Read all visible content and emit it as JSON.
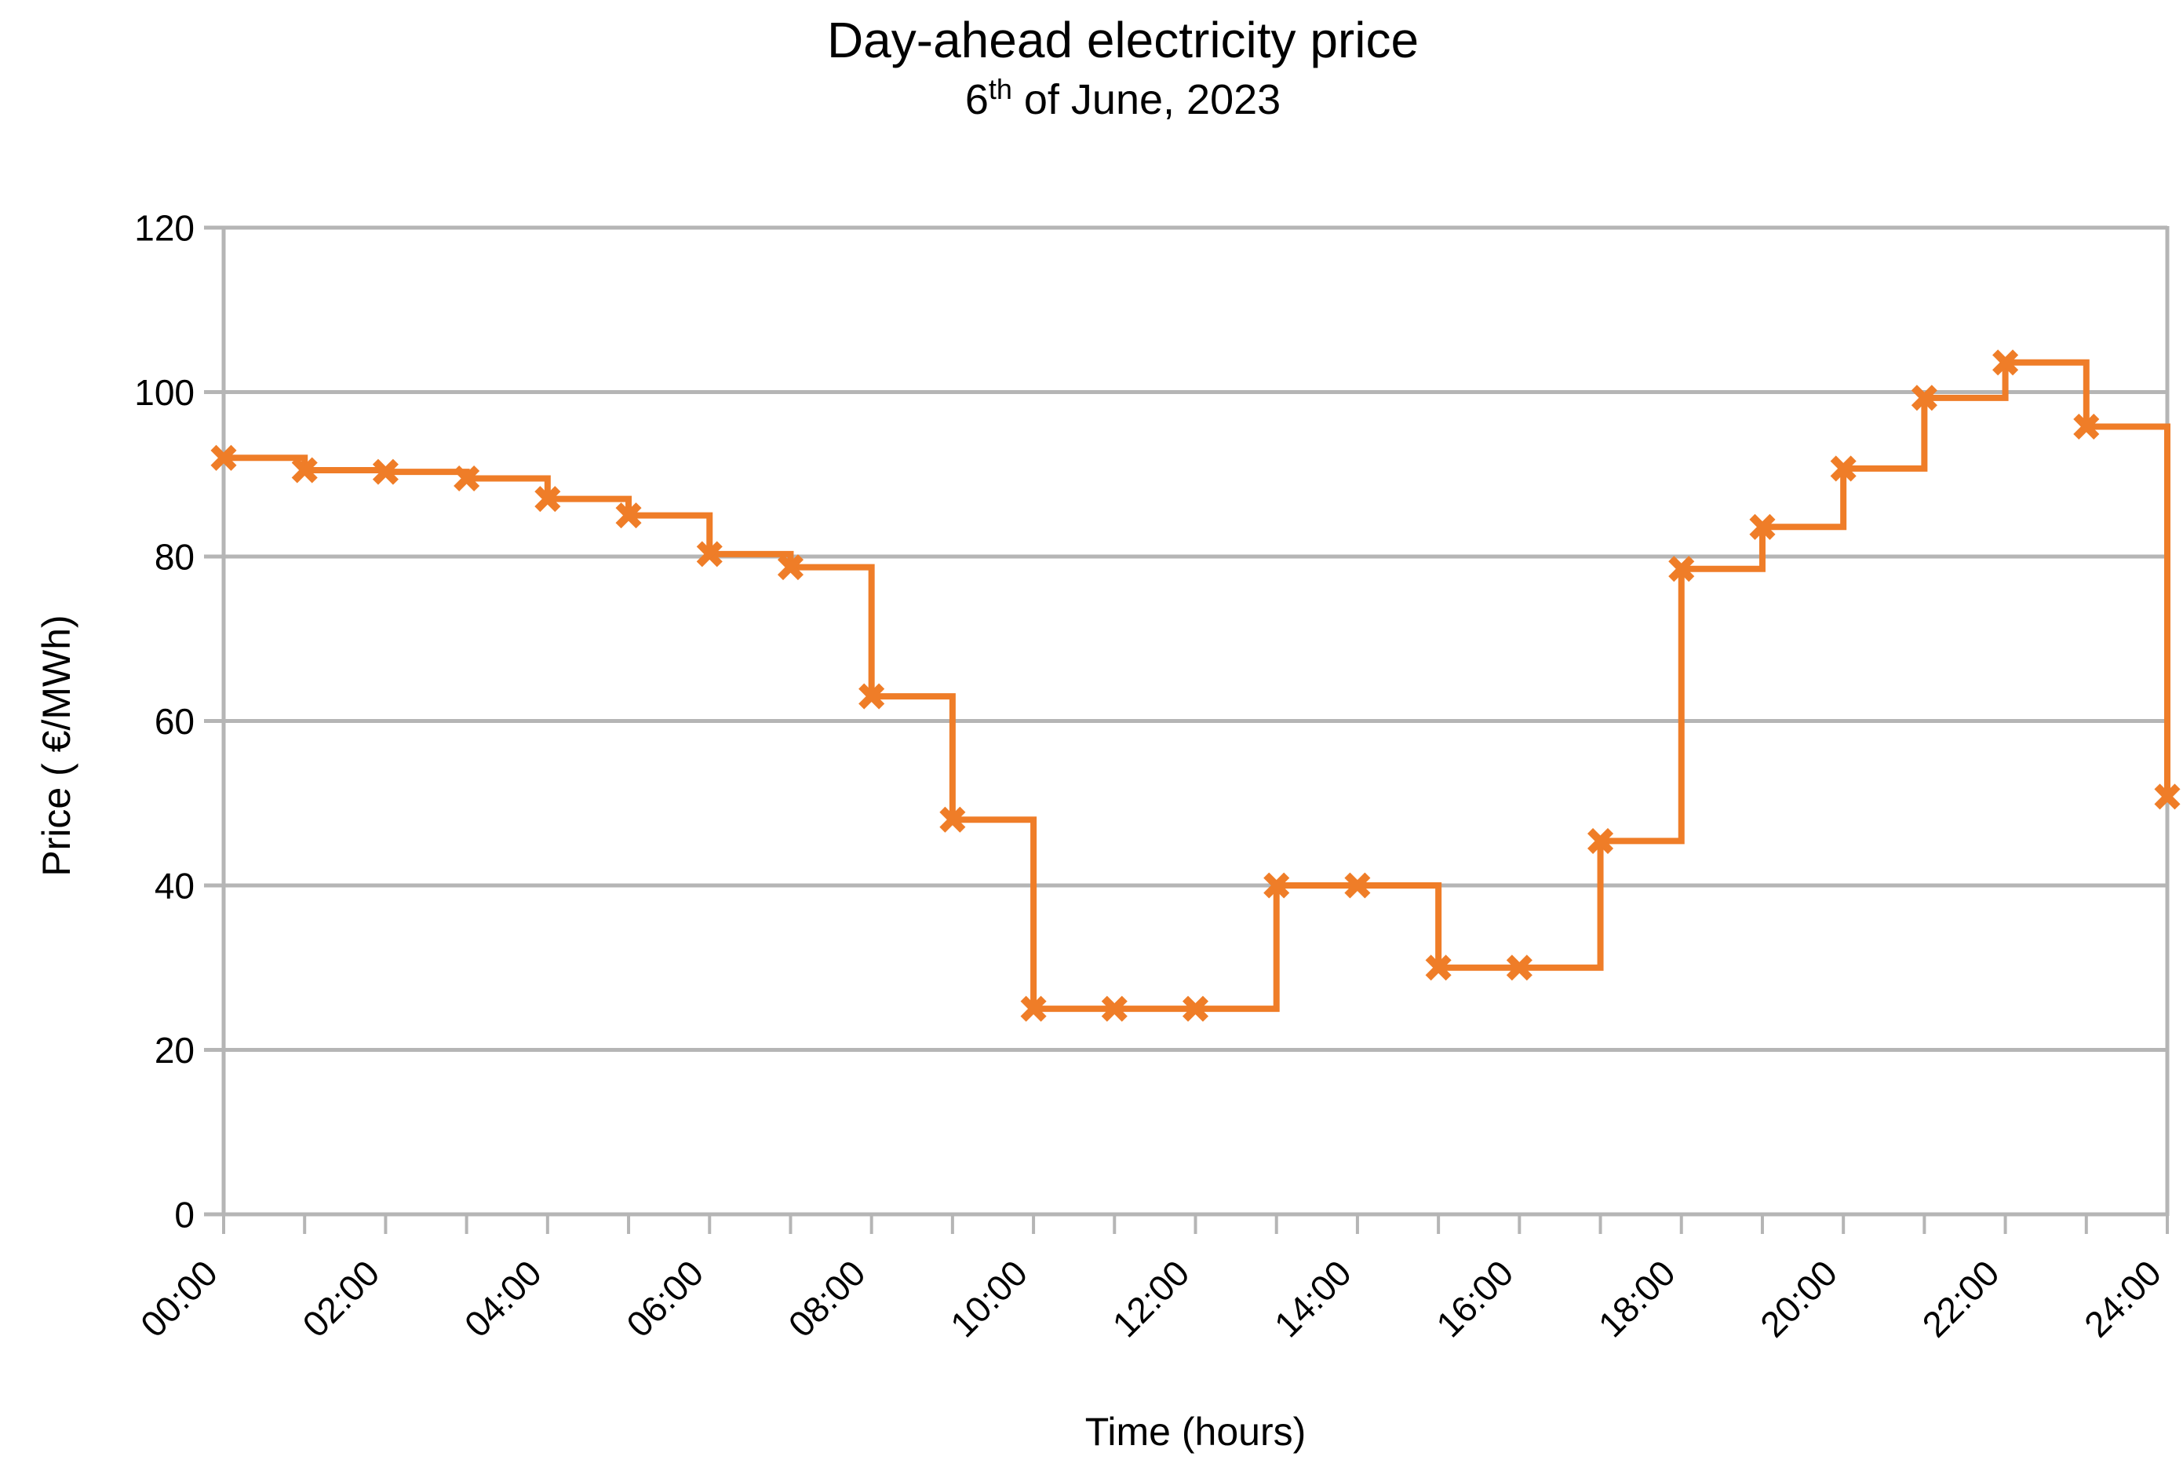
{
  "title": "Day-ahead electricity price",
  "subtitle": {
    "day": "6",
    "ordinal": "th",
    "rest": " of June, 2023"
  },
  "axes": {
    "y_title": "Price ( €/MWh)",
    "x_title": "Time (hours)",
    "y_ticks": [
      0,
      20,
      40,
      60,
      80,
      100,
      120
    ],
    "y_range": [
      0,
      120
    ],
    "x_range_hours": [
      0,
      24
    ],
    "x_tick_labels": [
      "00:00",
      "02:00",
      "04:00",
      "06:00",
      "08:00",
      "10:00",
      "12:00",
      "14:00",
      "16:00",
      "18:00",
      "20:00",
      "22:00",
      "24:00"
    ],
    "x_label_every_hours": 2,
    "x_minor_tick_hours": 1,
    "grid": "horizontal"
  },
  "chart_data": {
    "type": "line",
    "subtype": "step-post",
    "title": "Day-ahead electricity price",
    "subtitle_text": "6th of June, 2023",
    "xlabel": "Time (hours)",
    "ylabel": "Price ( €/MWh)",
    "ylim": [
      0,
      120
    ],
    "x_hours": [
      0,
      1,
      2,
      3,
      4,
      5,
      6,
      7,
      8,
      9,
      10,
      11,
      12,
      13,
      14,
      15,
      16,
      17,
      18,
      19,
      20,
      21,
      22,
      23,
      24
    ],
    "values": [
      92,
      90.5,
      90.3,
      89.5,
      87,
      85,
      80.3,
      78.7,
      63,
      48,
      25,
      25,
      25,
      40,
      40,
      30,
      30,
      45.4,
      78.5,
      83.6,
      90.7,
      99.3,
      103.6,
      95.8,
      50.8
    ],
    "marker": "x",
    "legend": "none"
  },
  "colors": {
    "line": "#EF7D28",
    "grid": "#B5B5B5",
    "text": "#000000",
    "background": "#FFFFFF"
  }
}
